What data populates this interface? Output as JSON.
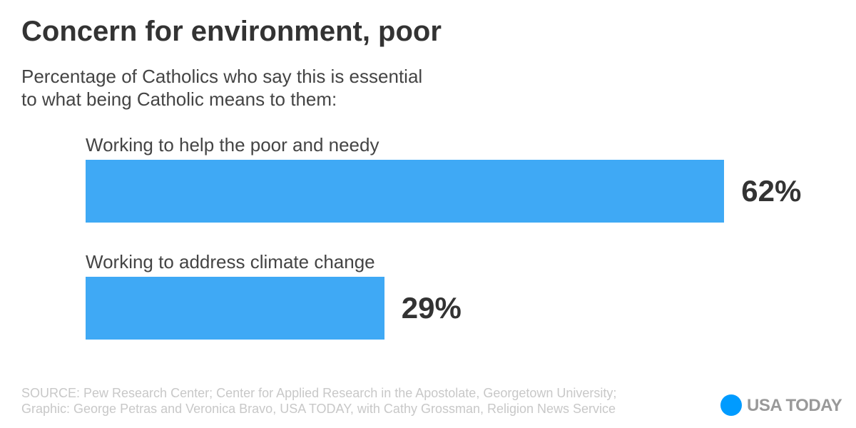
{
  "chart_data": {
    "type": "bar",
    "orientation": "horizontal",
    "title": "Concern for environment, poor",
    "subtitle": [
      "Percentage of Catholics who say this is essential",
      "to what being Catholic means to them:"
    ],
    "categories": [
      "Working to help the poor and needy",
      "Working to address climate change"
    ],
    "values": [
      62,
      29
    ],
    "value_labels": [
      "62%",
      "29%"
    ],
    "color": "#3fa9f5",
    "source": [
      "SOURCE: Pew Research Center; Center for Applied Research in the Apostolate, Georgetown University;",
      "Graphic: George Petras and Veronica Bravo, USA TODAY, with Cathy Grossman, Religion News Service"
    ],
    "logo": "USA TODAY"
  }
}
